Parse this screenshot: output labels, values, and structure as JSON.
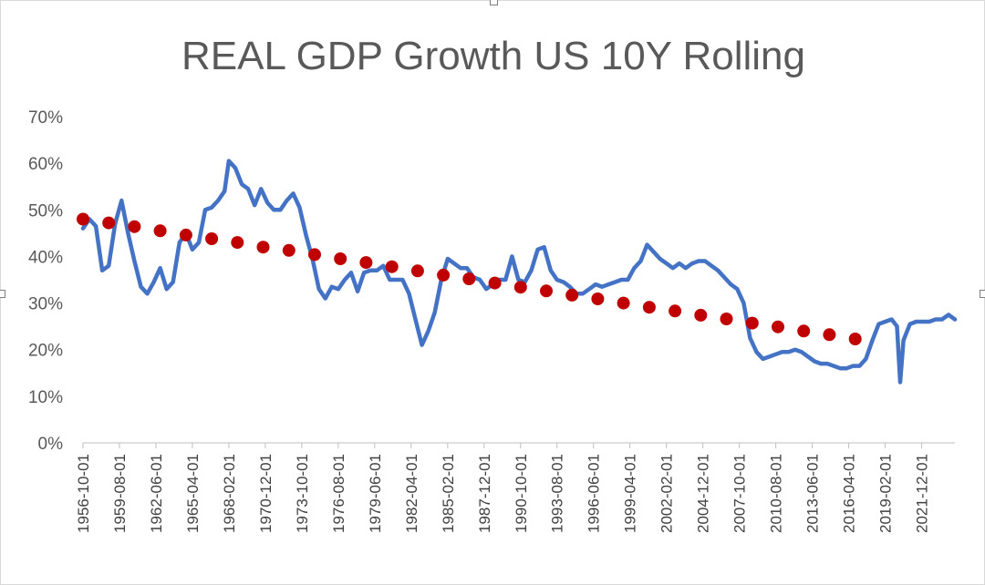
{
  "chart_data": {
    "type": "line",
    "title": "REAL GDP Growth US 10Y Rolling",
    "xlabel": "",
    "ylabel": "",
    "ylim": [
      0,
      0.7
    ],
    "y_ticks": [
      "0%",
      "10%",
      "20%",
      "30%",
      "40%",
      "50%",
      "60%",
      "70%"
    ],
    "x_tick_labels": [
      "1956-10-01",
      "1959-08-01",
      "1962-06-01",
      "1965-04-01",
      "1968-02-01",
      "1970-12-01",
      "1973-10-01",
      "1976-08-01",
      "1979-06-01",
      "1982-04-01",
      "1985-02-01",
      "1987-12-01",
      "1990-10-01",
      "1993-08-01",
      "1996-06-01",
      "1999-04-01",
      "2002-02-01",
      "2004-12-01",
      "2007-10-01",
      "2010-08-01",
      "2013-06-01",
      "2016-04-01",
      "2019-02-01",
      "2021-12-01"
    ],
    "x_range": [
      "1956-10-01",
      "2024-07-01"
    ],
    "grid": false,
    "legend": "none",
    "series": [
      {
        "style": "line",
        "color": "#4472c4",
        "points": [
          [
            "1956-10-01",
            0.46
          ],
          [
            "1957-04-01",
            0.48
          ],
          [
            "1957-10-01",
            0.465
          ],
          [
            "1958-04-01",
            0.37
          ],
          [
            "1958-10-01",
            0.38
          ],
          [
            "1959-04-01",
            0.47
          ],
          [
            "1959-10-01",
            0.52
          ],
          [
            "1960-04-01",
            0.45
          ],
          [
            "1960-10-01",
            0.39
          ],
          [
            "1961-04-01",
            0.335
          ],
          [
            "1961-10-01",
            0.32
          ],
          [
            "1962-04-01",
            0.345
          ],
          [
            "1962-10-01",
            0.375
          ],
          [
            "1963-04-01",
            0.33
          ],
          [
            "1963-10-01",
            0.345
          ],
          [
            "1964-04-01",
            0.43
          ],
          [
            "1964-10-01",
            0.45
          ],
          [
            "1965-04-01",
            0.415
          ],
          [
            "1965-10-01",
            0.43
          ],
          [
            "1966-04-01",
            0.5
          ],
          [
            "1966-10-01",
            0.505
          ],
          [
            "1967-04-01",
            0.52
          ],
          [
            "1967-10-01",
            0.54
          ],
          [
            "1968-02-01",
            0.605
          ],
          [
            "1968-08-01",
            0.59
          ],
          [
            "1969-02-01",
            0.555
          ],
          [
            "1969-08-01",
            0.545
          ],
          [
            "1970-02-01",
            0.51
          ],
          [
            "1970-08-01",
            0.545
          ],
          [
            "1971-02-01",
            0.515
          ],
          [
            "1971-08-01",
            0.5
          ],
          [
            "1972-02-01",
            0.5
          ],
          [
            "1972-08-01",
            0.52
          ],
          [
            "1973-02-01",
            0.535
          ],
          [
            "1973-08-01",
            0.505
          ],
          [
            "1974-02-01",
            0.445
          ],
          [
            "1974-08-01",
            0.395
          ],
          [
            "1975-02-01",
            0.33
          ],
          [
            "1975-08-01",
            0.31
          ],
          [
            "1976-02-01",
            0.335
          ],
          [
            "1976-08-01",
            0.33
          ],
          [
            "1977-02-01",
            0.35
          ],
          [
            "1977-08-01",
            0.365
          ],
          [
            "1978-02-01",
            0.325
          ],
          [
            "1978-08-01",
            0.365
          ],
          [
            "1979-02-01",
            0.37
          ],
          [
            "1979-08-01",
            0.37
          ],
          [
            "1980-02-01",
            0.38
          ],
          [
            "1980-08-01",
            0.35
          ],
          [
            "1981-02-01",
            0.35
          ],
          [
            "1981-08-01",
            0.35
          ],
          [
            "1982-02-01",
            0.32
          ],
          [
            "1982-08-01",
            0.265
          ],
          [
            "1983-02-01",
            0.21
          ],
          [
            "1983-08-01",
            0.24
          ],
          [
            "1984-02-01",
            0.28
          ],
          [
            "1984-08-01",
            0.35
          ],
          [
            "1985-02-01",
            0.395
          ],
          [
            "1985-08-01",
            0.385
          ],
          [
            "1986-02-01",
            0.375
          ],
          [
            "1986-08-01",
            0.375
          ],
          [
            "1987-02-01",
            0.355
          ],
          [
            "1987-08-01",
            0.35
          ],
          [
            "1988-02-01",
            0.33
          ],
          [
            "1988-08-01",
            0.34
          ],
          [
            "1989-02-01",
            0.35
          ],
          [
            "1989-08-01",
            0.35
          ],
          [
            "1990-02-01",
            0.4
          ],
          [
            "1990-08-01",
            0.35
          ],
          [
            "1991-02-01",
            0.345
          ],
          [
            "1991-08-01",
            0.37
          ],
          [
            "1992-02-01",
            0.415
          ],
          [
            "1992-08-01",
            0.42
          ],
          [
            "1993-02-01",
            0.37
          ],
          [
            "1993-08-01",
            0.35
          ],
          [
            "1994-02-01",
            0.345
          ],
          [
            "1994-08-01",
            0.335
          ],
          [
            "1995-02-01",
            0.32
          ],
          [
            "1995-08-01",
            0.32
          ],
          [
            "1996-02-01",
            0.33
          ],
          [
            "1996-08-01",
            0.34
          ],
          [
            "1997-02-01",
            0.335
          ],
          [
            "1997-08-01",
            0.34
          ],
          [
            "1998-02-01",
            0.345
          ],
          [
            "1998-08-01",
            0.35
          ],
          [
            "1999-02-01",
            0.35
          ],
          [
            "1999-08-01",
            0.375
          ],
          [
            "2000-02-01",
            0.39
          ],
          [
            "2000-08-01",
            0.425
          ],
          [
            "2001-02-01",
            0.41
          ],
          [
            "2001-08-01",
            0.395
          ],
          [
            "2002-02-01",
            0.385
          ],
          [
            "2002-08-01",
            0.375
          ],
          [
            "2003-02-01",
            0.385
          ],
          [
            "2003-08-01",
            0.375
          ],
          [
            "2004-02-01",
            0.385
          ],
          [
            "2004-08-01",
            0.39
          ],
          [
            "2005-02-01",
            0.39
          ],
          [
            "2005-08-01",
            0.38
          ],
          [
            "2006-02-01",
            0.37
          ],
          [
            "2006-08-01",
            0.355
          ],
          [
            "2007-02-01",
            0.34
          ],
          [
            "2007-08-01",
            0.33
          ],
          [
            "2008-02-01",
            0.3
          ],
          [
            "2008-08-01",
            0.225
          ],
          [
            "2009-02-01",
            0.195
          ],
          [
            "2009-08-01",
            0.18
          ],
          [
            "2010-02-01",
            0.185
          ],
          [
            "2010-08-01",
            0.19
          ],
          [
            "2011-02-01",
            0.195
          ],
          [
            "2011-08-01",
            0.195
          ],
          [
            "2012-02-01",
            0.2
          ],
          [
            "2012-08-01",
            0.195
          ],
          [
            "2013-02-01",
            0.185
          ],
          [
            "2013-08-01",
            0.175
          ],
          [
            "2014-02-01",
            0.17
          ],
          [
            "2014-08-01",
            0.17
          ],
          [
            "2015-02-01",
            0.165
          ],
          [
            "2015-08-01",
            0.16
          ],
          [
            "2016-02-01",
            0.16
          ],
          [
            "2016-08-01",
            0.165
          ],
          [
            "2017-02-01",
            0.165
          ],
          [
            "2017-08-01",
            0.18
          ],
          [
            "2018-02-01",
            0.22
          ],
          [
            "2018-08-01",
            0.255
          ],
          [
            "2019-02-01",
            0.26
          ],
          [
            "2019-08-01",
            0.265
          ],
          [
            "2020-01-01",
            0.25
          ],
          [
            "2020-04-01",
            0.13
          ],
          [
            "2020-07-01",
            0.22
          ],
          [
            "2021-01-01",
            0.255
          ],
          [
            "2021-07-01",
            0.26
          ],
          [
            "2022-01-01",
            0.26
          ],
          [
            "2022-07-01",
            0.26
          ],
          [
            "2023-01-01",
            0.265
          ],
          [
            "2023-07-01",
            0.265
          ],
          [
            "2024-01-01",
            0.275
          ],
          [
            "2024-07-01",
            0.265
          ]
        ]
      },
      {
        "style": "dotted",
        "color": "#c00000",
        "points": [
          [
            "1956-10-01",
            0.48
          ],
          [
            "1958-10-01",
            0.472
          ],
          [
            "1960-10-01",
            0.464
          ],
          [
            "1962-10-01",
            0.455
          ],
          [
            "1964-10-01",
            0.446
          ],
          [
            "1966-10-01",
            0.438
          ],
          [
            "1968-10-01",
            0.43
          ],
          [
            "1970-10-01",
            0.42
          ],
          [
            "1972-10-01",
            0.413
          ],
          [
            "1974-10-01",
            0.404
          ],
          [
            "1976-10-01",
            0.395
          ],
          [
            "1978-10-01",
            0.387
          ],
          [
            "1980-10-01",
            0.378
          ],
          [
            "1982-10-01",
            0.369
          ],
          [
            "1984-10-01",
            0.36
          ],
          [
            "1986-10-01",
            0.352
          ],
          [
            "1988-10-01",
            0.343
          ],
          [
            "1990-10-01",
            0.334
          ],
          [
            "1992-10-01",
            0.326
          ],
          [
            "1994-10-01",
            0.317
          ],
          [
            "1996-10-01",
            0.309
          ],
          [
            "1998-10-01",
            0.3
          ],
          [
            "2000-10-01",
            0.291
          ],
          [
            "2002-10-01",
            0.283
          ],
          [
            "2004-10-01",
            0.274
          ],
          [
            "2006-10-01",
            0.266
          ],
          [
            "2008-10-01",
            0.257
          ],
          [
            "2010-10-01",
            0.249
          ],
          [
            "2012-10-01",
            0.24
          ],
          [
            "2014-10-01",
            0.232
          ],
          [
            "2016-10-01",
            0.223
          ]
        ]
      }
    ]
  }
}
